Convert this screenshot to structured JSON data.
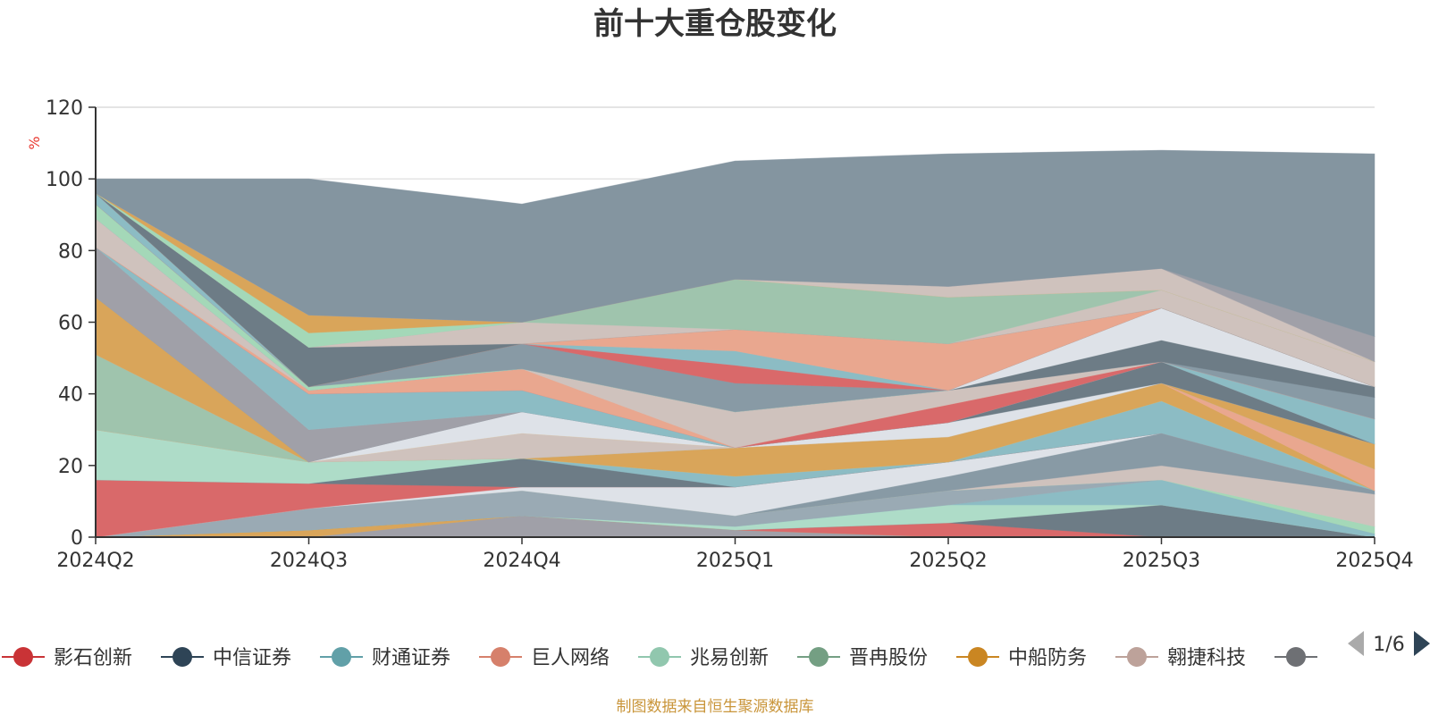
{
  "chart_data": {
    "type": "area",
    "stacked": true,
    "title": "前十大重仓股变化",
    "ylabel": "%",
    "ylim": [
      0,
      120
    ],
    "yticks": [
      "0",
      "20",
      "40",
      "60",
      "80",
      "100",
      "120"
    ],
    "categories": [
      "2024Q2",
      "2024Q3",
      "2024Q4",
      "2025Q1",
      "2025Q2",
      "2025Q3",
      "2025Q4"
    ],
    "grid": true,
    "legend_position": "bottom",
    "series": [
      {
        "color": "#a0a0a8",
        "values": [
          0,
          0,
          6,
          2,
          0,
          0,
          0
        ]
      },
      {
        "color": "#d9a55a",
        "values": [
          0,
          2,
          0,
          0,
          0,
          0,
          0
        ]
      },
      {
        "color": "#d9696a",
        "values": [
          0,
          0,
          0,
          0,
          4,
          0,
          0
        ]
      },
      {
        "color": "#6d7c86",
        "values": [
          0,
          0,
          0,
          0,
          0,
          9,
          0
        ]
      },
      {
        "color": "#aedcc8",
        "values": [
          0,
          0,
          0,
          1,
          5,
          0,
          0
        ]
      },
      {
        "color": "#8cbcc4",
        "values": [
          0,
          0,
          0,
          0,
          0,
          7,
          1
        ]
      },
      {
        "color": "#9aaab4",
        "values": [
          0,
          6,
          7,
          3,
          4,
          0,
          0
        ]
      },
      {
        "color": "#a4d8b8",
        "values": [
          0,
          0,
          0,
          0,
          0,
          0,
          2
        ]
      },
      {
        "color": "#cfc2bd",
        "values": [
          0,
          0,
          0,
          0,
          0,
          4,
          9
        ]
      },
      {
        "color": "#889aa5",
        "values": [
          0,
          0,
          0,
          0,
          4,
          9,
          1
        ]
      },
      {
        "color": "#dee2e8",
        "values": [
          0,
          0,
          1,
          8,
          4,
          0,
          0
        ]
      },
      {
        "color": "#d9696a",
        "values": [
          16,
          7,
          0,
          0,
          0,
          0,
          0
        ]
      },
      {
        "color": "#6d7c86",
        "values": [
          0,
          0,
          8,
          0,
          0,
          0,
          0
        ]
      },
      {
        "color": "#8cbcc4",
        "values": [
          0,
          0,
          0,
          3,
          0,
          9,
          0
        ]
      },
      {
        "color": "#aedcc8",
        "values": [
          14,
          6,
          0,
          0,
          0,
          0,
          0
        ]
      },
      {
        "color": "#d9a55a",
        "values": [
          0,
          0,
          0,
          8,
          7,
          5,
          0
        ]
      },
      {
        "color": "#e9a78f",
        "values": [
          0,
          0,
          0,
          0,
          0,
          0,
          6
        ]
      },
      {
        "color": "#9fc4ad",
        "values": [
          21,
          0,
          0,
          0,
          0,
          0,
          0
        ]
      },
      {
        "color": "#cfc2bd",
        "values": [
          0,
          0,
          7,
          0,
          0,
          0,
          0
        ]
      },
      {
        "color": "#d9a55a",
        "values": [
          16,
          0,
          0,
          0,
          0,
          0,
          7
        ]
      },
      {
        "color": "#dee2e8",
        "values": [
          0,
          0,
          6,
          0,
          4,
          0,
          0
        ]
      },
      {
        "color": "#6d7c86",
        "values": [
          0,
          0,
          0,
          0,
          0,
          6,
          0
        ]
      },
      {
        "color": "#a0a0a8",
        "values": [
          14,
          9,
          0,
          0,
          0,
          0,
          0
        ]
      },
      {
        "color": "#8cbcc4",
        "values": [
          0,
          10,
          6,
          0,
          0,
          0,
          7
        ]
      },
      {
        "color": "#d9696a",
        "values": [
          0,
          0,
          0,
          0,
          5,
          0,
          0
        ]
      },
      {
        "color": "#e9a78f",
        "values": [
          0,
          1,
          6,
          0,
          0,
          0,
          0
        ]
      },
      {
        "color": "#cfc2bd",
        "values": [
          8,
          0,
          0,
          10,
          4,
          0,
          0
        ]
      },
      {
        "color": "#889aa5",
        "values": [
          0,
          0,
          0,
          0,
          0,
          0,
          6
        ]
      },
      {
        "color": "#6d7c86",
        "values": [
          0,
          0,
          0,
          0,
          0,
          6,
          3
        ]
      },
      {
        "color": "#dee2e8",
        "values": [
          0,
          0,
          0,
          0,
          0,
          9,
          0
        ]
      },
      {
        "color": "#a4d8b8",
        "values": [
          4,
          1,
          0,
          0,
          0,
          0,
          0
        ]
      },
      {
        "color": "#889aa5",
        "values": [
          0,
          0,
          7,
          8,
          0,
          0,
          0
        ]
      },
      {
        "color": "#d9696a",
        "values": [
          0,
          0,
          0,
          5,
          0,
          0,
          0
        ]
      },
      {
        "color": "#8cbcc4",
        "values": [
          3,
          0,
          0,
          4,
          0,
          0,
          0
        ]
      },
      {
        "color": "#e9a78f",
        "values": [
          0,
          0,
          0,
          6,
          13,
          0,
          0
        ]
      },
      {
        "color": "#6d7c86",
        "values": [
          0,
          11,
          0,
          0,
          0,
          0,
          0
        ]
      },
      {
        "color": "#cfc2bd",
        "values": [
          0,
          0,
          6,
          0,
          0,
          5,
          7
        ]
      },
      {
        "color": "#9fc4ad",
        "values": [
          0,
          0,
          0,
          14,
          13,
          0,
          0
        ]
      },
      {
        "color": "#a4d8b8",
        "values": [
          0,
          4,
          0,
          0,
          0,
          0,
          0
        ]
      },
      {
        "color": "#d9a55a",
        "values": [
          0,
          5,
          0,
          0,
          0,
          0,
          0
        ]
      },
      {
        "color": "#cfc2bd",
        "values": [
          0,
          0,
          0,
          0,
          3,
          6,
          0
        ]
      },
      {
        "color": "#a0a0a8",
        "values": [
          0,
          0,
          0,
          0,
          0,
          0,
          7
        ]
      },
      {
        "color": "#8495a0",
        "values": [
          4,
          38,
          33,
          33,
          37,
          33,
          51
        ]
      }
    ]
  },
  "legend": {
    "items": [
      {
        "label": "影石创新",
        "color": "#c93336"
      },
      {
        "label": "中信证券",
        "color": "#2e4456"
      },
      {
        "label": "财通证券",
        "color": "#61a0a8"
      },
      {
        "label": "巨人网络",
        "color": "#d6806b"
      },
      {
        "label": "兆易创新",
        "color": "#91c7ae"
      },
      {
        "label": "晋冉股份",
        "color": "#749f83"
      },
      {
        "label": "中船防务",
        "color": "#ca8622"
      },
      {
        "label": "翱捷科技",
        "color": "#bda29a"
      },
      {
        "label": "",
        "color": "#6e7074"
      }
    ],
    "page": "1/6"
  },
  "source": "制图数据来自恒生聚源数据库"
}
